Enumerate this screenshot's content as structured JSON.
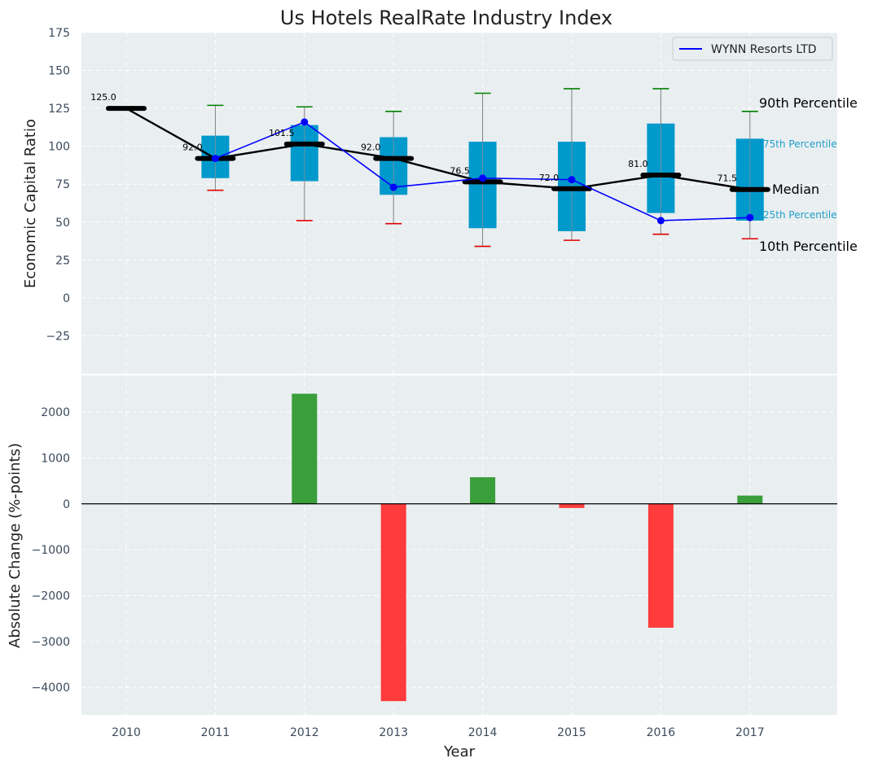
{
  "chart_data": [
    {
      "type": "box",
      "title": "Us Hotels RealRate Industry Index",
      "xlabel": "",
      "ylabel": "Economic Capital Ratio",
      "ylim": [
        -50,
        175
      ],
      "yticks": [
        -25,
        0,
        25,
        50,
        75,
        100,
        125,
        150,
        175
      ],
      "ytick_labels": [
        "−25",
        "0",
        "25",
        "50",
        "75",
        "100",
        "125",
        "150",
        "175"
      ],
      "grid": true,
      "categories": [
        "2010",
        "2011",
        "2012",
        "2013",
        "2014",
        "2015",
        "2016",
        "2017"
      ],
      "boxes": [
        {
          "year": "2010",
          "p10": null,
          "q1": null,
          "median": 125.0,
          "q3": null,
          "p90": null
        },
        {
          "year": "2011",
          "p10": 71,
          "q1": 79,
          "median": 92.0,
          "q3": 107,
          "p90": 127
        },
        {
          "year": "2012",
          "p10": 51,
          "q1": 77,
          "median": 101.5,
          "q3": 114,
          "p90": 126
        },
        {
          "year": "2013",
          "p10": 49,
          "q1": 68,
          "median": 92.0,
          "q3": 106,
          "p90": 123
        },
        {
          "year": "2014",
          "p10": 34,
          "q1": 46,
          "median": 76.5,
          "q3": 103,
          "p90": 135
        },
        {
          "year": "2015",
          "p10": 38,
          "q1": 44,
          "median": 72.0,
          "q3": 103,
          "p90": 138
        },
        {
          "year": "2016",
          "p10": 42,
          "q1": 56,
          "median": 81.0,
          "q3": 115,
          "p90": 138
        },
        {
          "year": "2017",
          "p10": 39,
          "q1": 51,
          "median": 71.5,
          "q3": 105,
          "p90": 123
        }
      ],
      "median_labels": [
        "125.0",
        "92.0",
        "101.5",
        "92.0",
        "76.5",
        "72.0",
        "81.0",
        "71.5"
      ],
      "series": [
        {
          "name": "WYNN Resorts LTD",
          "color": "#0000ff",
          "x": [
            "2011",
            "2012",
            "2013",
            "2014",
            "2015",
            "2016",
            "2017"
          ],
          "values": [
            92,
            116,
            73,
            79,
            78,
            51,
            53
          ]
        }
      ],
      "legend": {
        "position": "top-right",
        "entries": [
          "WYNN Resorts LTD"
        ]
      },
      "annotations": {
        "p90": "90th Percentile",
        "p75": "75th Percentile",
        "median": "Median",
        "p25": "25th Percentile",
        "p10": "10th Percentile"
      }
    },
    {
      "type": "bar",
      "xlabel": "Year",
      "ylabel": "Absolute Change (%-points)",
      "ylim": [
        -4600,
        2800
      ],
      "yticks": [
        -4000,
        -3000,
        -2000,
        -1000,
        0,
        1000,
        2000
      ],
      "ytick_labels": [
        "−4000",
        "−3000",
        "−2000",
        "−1000",
        "0",
        "1000",
        "2000"
      ],
      "grid": true,
      "categories": [
        "2010",
        "2011",
        "2012",
        "2013",
        "2014",
        "2015",
        "2016",
        "2017"
      ],
      "values": [
        0,
        0,
        2400,
        -4300,
        580,
        -90,
        -2700,
        180
      ]
    }
  ],
  "colors": {
    "panel_bg": "#e9eef0",
    "box": "#0099cc",
    "median_line": "#000000",
    "series": "#0000ff",
    "p90_cap": "#008000",
    "p10_cap": "#e00000",
    "positive_bar": "#3a9e3a",
    "negative_bar": "#ff3b3b",
    "tick_text": "#3b4a5c",
    "label_text": "#222222",
    "p75_label": "#1f9ec9"
  }
}
